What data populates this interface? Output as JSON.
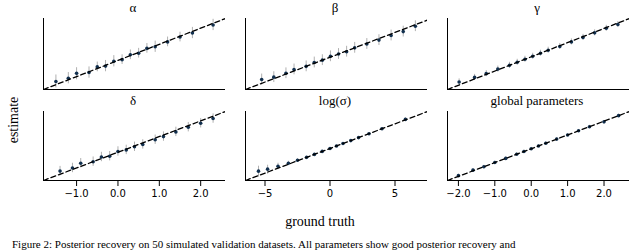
{
  "chart_data": [
    {
      "type": "scatter",
      "title": "α",
      "color": "#12304f",
      "line_style": "dashed",
      "tick_labels": false,
      "xlim": [
        -1.8,
        2.6
      ],
      "ylim": [
        -1.8,
        2.6
      ],
      "x": [
        -1.5,
        -1.2,
        -1.0,
        -0.7,
        -0.5,
        -0.3,
        -0.1,
        0.1,
        0.3,
        0.5,
        0.7,
        0.9,
        1.2,
        1.5,
        1.8,
        2.3
      ],
      "values": [
        -1.3,
        -1.1,
        -0.8,
        -0.75,
        -0.4,
        -0.35,
        -0.05,
        0.05,
        0.35,
        0.45,
        0.75,
        0.85,
        1.15,
        1.45,
        1.7,
        2.2
      ],
      "lower": [
        -1.7,
        -1.45,
        -1.2,
        -1.1,
        -0.7,
        -0.7,
        -0.4,
        -0.25,
        0.05,
        0.15,
        0.45,
        0.5,
        0.85,
        1.15,
        1.35,
        1.85
      ],
      "upper": [
        -0.9,
        -0.75,
        -0.45,
        -0.4,
        -0.1,
        0.0,
        0.3,
        0.35,
        0.65,
        0.75,
        1.05,
        1.2,
        1.45,
        1.75,
        2.05,
        2.55
      ]
    },
    {
      "type": "scatter",
      "title": "β",
      "color": "#12304f",
      "line_style": "dashed",
      "tick_labels": false,
      "xlim": [
        -2.0,
        2.5
      ],
      "ylim": [
        -2.0,
        2.6
      ],
      "x": [
        -1.6,
        -1.3,
        -1.0,
        -0.8,
        -0.5,
        -0.3,
        -0.1,
        0.1,
        0.3,
        0.5,
        0.7,
        1.0,
        1.3,
        1.6,
        1.9,
        2.2
      ],
      "values": [
        -1.35,
        -1.2,
        -0.95,
        -0.7,
        -0.5,
        -0.25,
        -0.1,
        0.15,
        0.3,
        0.45,
        0.7,
        0.95,
        1.2,
        1.5,
        1.75,
        2.1
      ],
      "lower": [
        -1.7,
        -1.55,
        -1.3,
        -1.05,
        -0.85,
        -0.6,
        -0.45,
        -0.2,
        -0.05,
        0.1,
        0.35,
        0.6,
        0.85,
        1.15,
        1.4,
        1.75
      ],
      "upper": [
        -1.0,
        -0.85,
        -0.6,
        -0.35,
        -0.15,
        0.1,
        0.25,
        0.5,
        0.65,
        0.8,
        1.05,
        1.3,
        1.55,
        1.85,
        2.1,
        2.45
      ]
    },
    {
      "type": "scatter",
      "title": "γ",
      "color": "#12304f",
      "line_style": "dashed",
      "tick_labels": false,
      "xlim": [
        -2.1,
        2.6
      ],
      "ylim": [
        -2.1,
        2.6
      ],
      "x": [
        -1.8,
        -1.4,
        -1.1,
        -0.8,
        -0.5,
        -0.3,
        -0.1,
        0.1,
        0.3,
        0.5,
        0.8,
        1.1,
        1.4,
        1.7,
        2.0,
        2.3
      ],
      "values": [
        -1.6,
        -1.3,
        -1.05,
        -0.75,
        -0.5,
        -0.3,
        -0.1,
        0.1,
        0.3,
        0.5,
        0.75,
        1.05,
        1.35,
        1.65,
        1.95,
        2.2
      ],
      "lower": [
        -1.8,
        -1.5,
        -1.25,
        -0.95,
        -0.7,
        -0.5,
        -0.3,
        -0.1,
        0.1,
        0.3,
        0.55,
        0.85,
        1.15,
        1.45,
        1.75,
        2.0
      ],
      "upper": [
        -1.4,
        -1.1,
        -0.85,
        -0.55,
        -0.3,
        -0.1,
        0.1,
        0.3,
        0.5,
        0.7,
        0.95,
        1.25,
        1.55,
        1.85,
        2.15,
        2.4
      ]
    },
    {
      "type": "scatter",
      "title": "δ",
      "color": "#12304f",
      "line_style": "dashed",
      "tick_labels": "x",
      "xlim": [
        -1.8,
        2.6
      ],
      "ylim": [
        -1.8,
        2.6
      ],
      "xticks": [
        -1,
        0,
        1,
        2
      ],
      "x": [
        -1.4,
        -1.1,
        -0.9,
        -0.6,
        -0.4,
        -0.2,
        0,
        0.2,
        0.4,
        0.6,
        0.9,
        1.1,
        1.4,
        1.7,
        2.0,
        2.3
      ],
      "values": [
        -1.2,
        -1.0,
        -0.7,
        -0.6,
        -0.3,
        -0.25,
        0.05,
        0.15,
        0.35,
        0.5,
        0.8,
        1.0,
        1.3,
        1.6,
        1.85,
        2.15
      ],
      "lower": [
        -1.5,
        -1.3,
        -1.0,
        -0.9,
        -0.6,
        -0.55,
        -0.25,
        -0.15,
        0.05,
        0.2,
        0.5,
        0.7,
        1.0,
        1.3,
        1.55,
        1.85
      ],
      "upper": [
        -0.9,
        -0.7,
        -0.4,
        -0.3,
        0.0,
        0.05,
        0.35,
        0.45,
        0.65,
        0.8,
        1.1,
        1.3,
        1.6,
        1.9,
        2.15,
        2.45
      ]
    },
    {
      "type": "scatter",
      "title": "log(σ)",
      "color": "#12304f",
      "line_style": "dashed",
      "tick_labels": "x",
      "xlim": [
        -6.5,
        7.5
      ],
      "ylim": [
        -6.5,
        7.5
      ],
      "xticks": [
        -5,
        0,
        5
      ],
      "x": [
        -5.5,
        -4.8,
        -4.0,
        -3.2,
        -2.5,
        -1.8,
        -1.2,
        -0.6,
        0,
        0.5,
        1.0,
        1.6,
        2.2,
        3.0,
        4.0,
        5.8
      ],
      "values": [
        -4.6,
        -4.2,
        -3.6,
        -3.0,
        -2.4,
        -1.8,
        -1.2,
        -0.6,
        0,
        0.5,
        1.0,
        1.6,
        2.2,
        3.0,
        4.0,
        5.9
      ],
      "lower": [
        -5.8,
        -5.2,
        -4.3,
        -3.5,
        -2.8,
        -2.1,
        -1.4,
        -0.8,
        -0.2,
        0.3,
        0.85,
        1.45,
        2.05,
        2.8,
        3.8,
        5.6
      ],
      "upper": [
        -3.6,
        -3.4,
        -3.0,
        -2.6,
        -2.1,
        -1.6,
        -1.0,
        -0.4,
        0.2,
        0.7,
        1.15,
        1.75,
        2.35,
        3.2,
        4.2,
        6.2
      ]
    },
    {
      "type": "scatter",
      "title": "global parameters",
      "color": "#12304f",
      "line_style": "dashed",
      "tick_labels": "x",
      "xlim": [
        -2.3,
        2.7
      ],
      "ylim": [
        -2.3,
        2.7
      ],
      "xticks": [
        -2,
        -1,
        0,
        1,
        2
      ],
      "x": [
        -2.0,
        -1.6,
        -1.3,
        -1.0,
        -0.7,
        -0.4,
        -0.2,
        0,
        0.2,
        0.4,
        0.7,
        1.0,
        1.3,
        1.6,
        2.0,
        2.4
      ],
      "values": [
        -1.95,
        -1.55,
        -1.3,
        -1.0,
        -0.7,
        -0.4,
        -0.2,
        0.0,
        0.2,
        0.4,
        0.7,
        1.0,
        1.3,
        1.6,
        1.95,
        2.4
      ],
      "lower": [
        -2.05,
        -1.65,
        -1.4,
        -1.1,
        -0.8,
        -0.5,
        -0.3,
        -0.1,
        0.1,
        0.3,
        0.6,
        0.9,
        1.2,
        1.5,
        1.85,
        2.3
      ],
      "upper": [
        -1.85,
        -1.45,
        -1.2,
        -0.9,
        -0.6,
        -0.3,
        -0.1,
        0.1,
        0.3,
        0.5,
        0.8,
        1.1,
        1.4,
        1.7,
        2.05,
        2.5
      ]
    }
  ],
  "figure": {
    "xlabel": "ground truth",
    "ylabel": "estimate",
    "caption": "Figure 2: Posterior recovery on 50 simulated validation datasets. All parameters show good posterior recovery and"
  }
}
